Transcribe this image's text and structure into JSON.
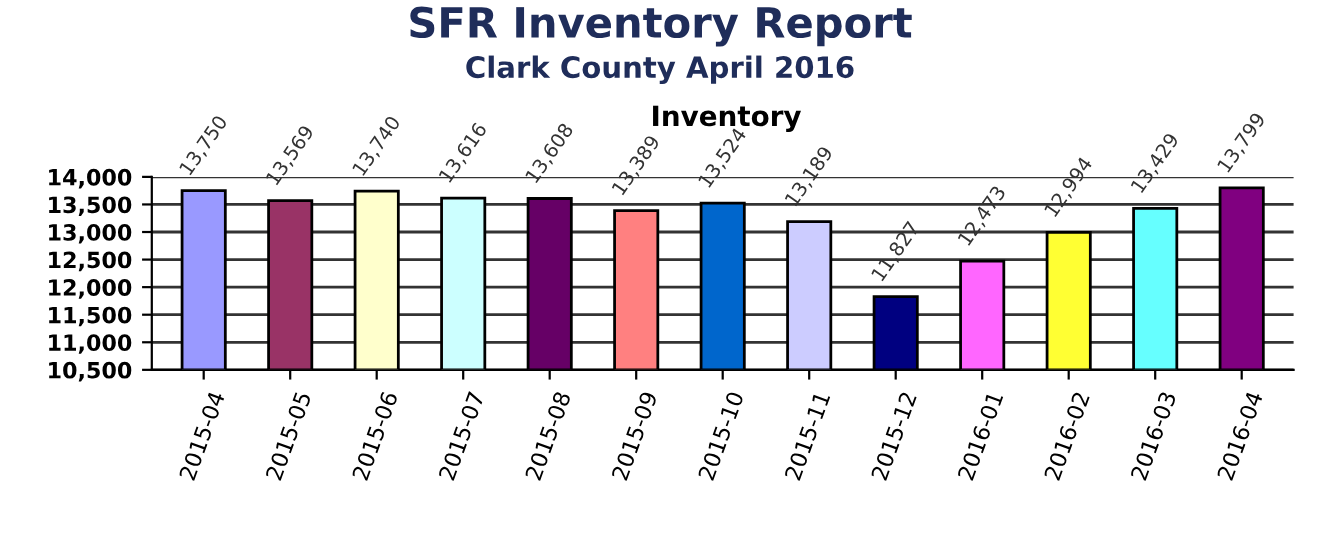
{
  "chart_data": {
    "type": "bar",
    "title": "SFR Inventory Report",
    "subtitle": "Clark County April 2016",
    "annotations": [
      "Inventory"
    ],
    "categories": [
      "2015-04",
      "2015-05",
      "2015-06",
      "2015-07",
      "2015-08",
      "2015-09",
      "2015-10",
      "2015-11",
      "2015-12",
      "2016-01",
      "2016-02",
      "2016-03",
      "2016-04"
    ],
    "values": [
      13750,
      13569,
      13740,
      13616,
      13608,
      13389,
      13524,
      13189,
      11827,
      12473,
      12994,
      13429,
      13799
    ],
    "value_labels": [
      "13,750",
      "13,569",
      "13,740",
      "13,616",
      "13,608",
      "13,389",
      "13,524",
      "13,189",
      "11,827",
      "12,473",
      "12,994",
      "13,429",
      "13,799"
    ],
    "colors": [
      "#9999ff",
      "#993366",
      "#ffffcc",
      "#ccffff",
      "#660066",
      "#ff8080",
      "#0066cc",
      "#ccccff",
      "#000080",
      "#ff66ff",
      "#ffff33",
      "#66ffff",
      "#800080"
    ],
    "ylim": [
      10500,
      14000
    ],
    "yticks": [
      {
        "value": 10500,
        "label": "10,500"
      },
      {
        "value": 11000,
        "label": "11,000"
      },
      {
        "value": 11500,
        "label": "11,500"
      },
      {
        "value": 12000,
        "label": "12,000"
      },
      {
        "value": 12500,
        "label": "12,500"
      },
      {
        "value": 13000,
        "label": "13,000"
      },
      {
        "value": 13500,
        "label": "13,500"
      },
      {
        "value": 14000,
        "label": "14,000"
      }
    ],
    "grid": "y",
    "legend": false
  }
}
